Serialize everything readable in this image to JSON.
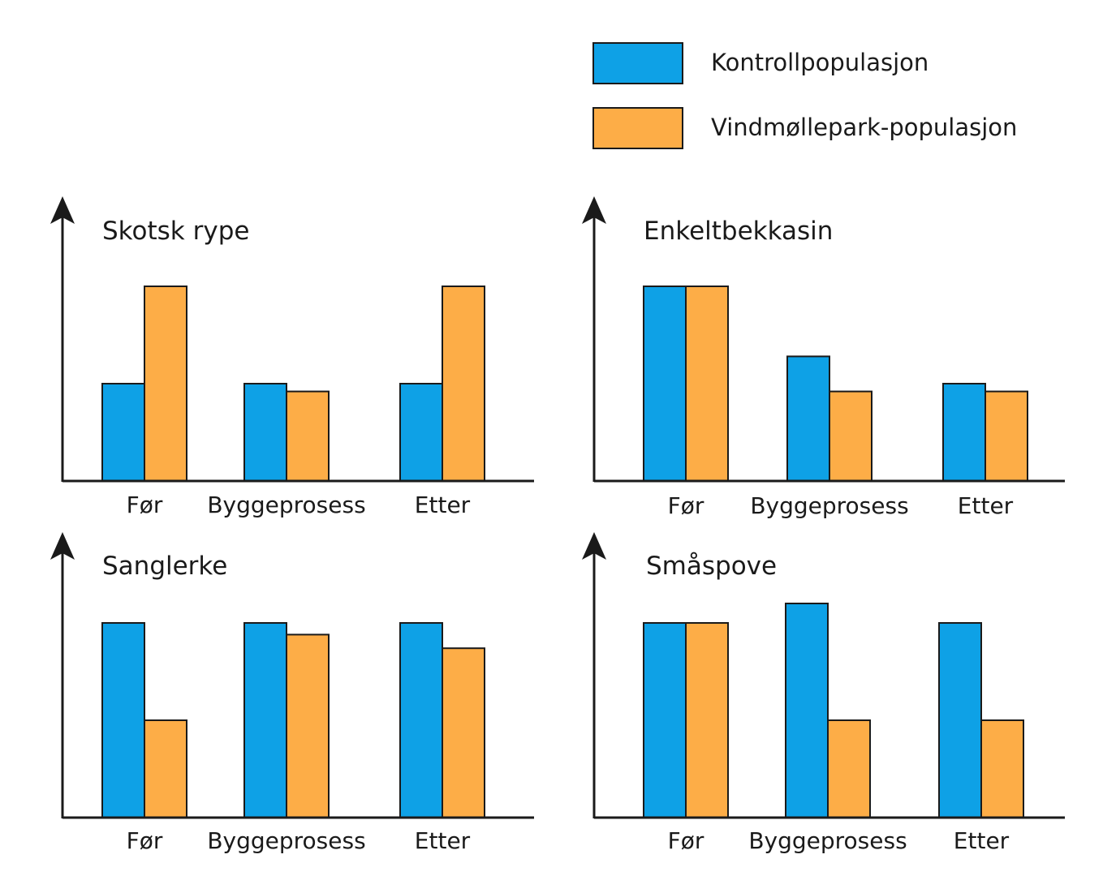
{
  "legend": {
    "items": [
      {
        "label": "Kontrollpopulasjon",
        "color": "#0ea1e6"
      },
      {
        "label": "Vindmøllepark-populasjon",
        "color": "#fdad47"
      }
    ]
  },
  "chart_data": [
    {
      "type": "bar",
      "title": "Skotsk rype",
      "categories": [
        "Før",
        "Byggeprosess",
        "Etter"
      ],
      "series": [
        {
          "name": "Kontrollpopulasjon",
          "values": [
            50,
            50,
            50
          ]
        },
        {
          "name": "Vindmøllepark-populasjon",
          "values": [
            100,
            46,
            100
          ]
        }
      ],
      "ylim": [
        0,
        115
      ],
      "xlabel": "",
      "ylabel": "",
      "grid": false
    },
    {
      "type": "bar",
      "title": "Enkeltbekkasin",
      "categories": [
        "Før",
        "Byggeprosess",
        "Etter"
      ],
      "series": [
        {
          "name": "Kontrollpopulasjon",
          "values": [
            100,
            64,
            50
          ]
        },
        {
          "name": "Vindmøllepark-populasjon",
          "values": [
            100,
            46,
            46
          ]
        }
      ],
      "ylim": [
        0,
        115
      ],
      "xlabel": "",
      "ylabel": "",
      "grid": false
    },
    {
      "type": "bar",
      "title": "Sanglerke",
      "categories": [
        "Før",
        "Byggeprosess",
        "Etter"
      ],
      "series": [
        {
          "name": "Kontrollpopulasjon",
          "values": [
            100,
            100,
            100
          ]
        },
        {
          "name": "Vindmøllepark-populasjon",
          "values": [
            50,
            94,
            87
          ]
        }
      ],
      "ylim": [
        0,
        115
      ],
      "xlabel": "",
      "ylabel": "",
      "grid": false
    },
    {
      "type": "bar",
      "title": "Småspove",
      "categories": [
        "Før",
        "Byggeprosess",
        "Etter"
      ],
      "series": [
        {
          "name": "Kontrollpopulasjon",
          "values": [
            100,
            110,
            100
          ]
        },
        {
          "name": "Vindmøllepark-populasjon",
          "values": [
            100,
            50,
            50
          ]
        }
      ],
      "ylim": [
        0,
        115
      ],
      "xlabel": "",
      "ylabel": "",
      "grid": false
    }
  ]
}
